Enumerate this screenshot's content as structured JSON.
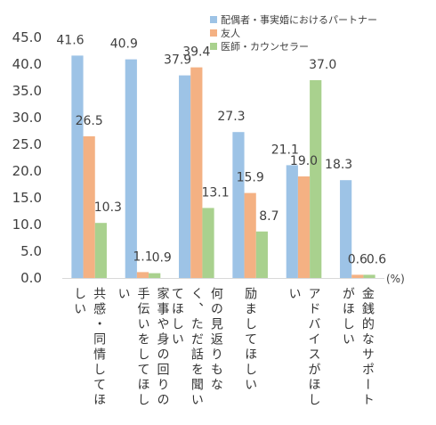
{
  "chart_data": {
    "type": "bar",
    "title": "",
    "xlabel": "",
    "ylabel": "",
    "unit_label": "(%)",
    "ylim": [
      0,
      45
    ],
    "yticks": [
      "0.0",
      "5.0",
      "10.0",
      "15.0",
      "20.0",
      "25.0",
      "30.0",
      "35.0",
      "40.0",
      "45.0"
    ],
    "grid": false,
    "legend_position": "top-right",
    "categories": [
      [
        "共感・同情してほ",
        "しい"
      ],
      [
        "家事や身の回りの",
        "手伝いをしてほし",
        "い"
      ],
      [
        "何の見返りもな",
        "く、ただ話を聞い",
        "てほしい"
      ],
      [
        "励ましてほしい"
      ],
      [
        "アドバイスがほし",
        "い"
      ],
      [
        "金銭的なサポート",
        "がほしい"
      ]
    ],
    "series": [
      {
        "name": "配偶者・事実婚におけるパートナー",
        "color": "#9dc3e6",
        "values": [
          41.6,
          40.9,
          37.9,
          27.3,
          21.1,
          18.3
        ],
        "labels": [
          "41.6",
          "40.9",
          "37.9",
          "27.3",
          "21.1",
          "18.3"
        ]
      },
      {
        "name": "友人",
        "color": "#f4b183",
        "values": [
          26.5,
          1.1,
          39.4,
          15.9,
          19.0,
          0.6
        ],
        "labels": [
          "26.5",
          "1.1",
          "39.4",
          "15.9",
          "19.0",
          "0.6"
        ]
      },
      {
        "name": "医師・カウンセラー",
        "color": "#a9d18e",
        "values": [
          10.3,
          0.9,
          13.1,
          8.7,
          37.0,
          0.6
        ],
        "labels": [
          "10.3",
          "0.9",
          "13.1",
          "8.7",
          "37.0",
          "0.6"
        ]
      }
    ]
  }
}
